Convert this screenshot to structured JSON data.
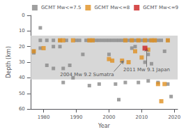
{
  "chart_data": {
    "type": "scatter",
    "xlabel": "Year",
    "ylabel": "Depth (km)",
    "xlim": [
      1976,
      2021
    ],
    "ylim": [
      60,
      0
    ],
    "xticks": [
      1980,
      1990,
      2000,
      2010,
      2020
    ],
    "yticks": [
      0,
      10,
      20,
      30,
      40,
      50,
      60
    ],
    "grid": false,
    "legend": "upper right",
    "marker": "square",
    "shaded_region": {
      "from": 13,
      "to": 41,
      "color": "#d0d0d0"
    },
    "annotations": [
      {
        "text": "2004 Mw 9.2 Sumatra",
        "x": 2004.5,
        "y": 29,
        "text_x": 2001.5,
        "text_y": 36,
        "color": "#555555"
      },
      {
        "text": "2011 Mw 9.1 Japan",
        "x": 2011.5,
        "y": 21,
        "text_x": 2011.5,
        "text_y": 33,
        "color": "#555555"
      }
    ],
    "series": [
      {
        "name": "GCMT Mw<=7.5",
        "color": "#888888",
        "x": [
          1977,
          1977,
          1979,
          1979,
          1979,
          1981,
          1981,
          1983,
          1983,
          1983,
          1985,
          1985,
          1986,
          1986,
          1987,
          1988,
          1989,
          1990,
          1991,
          1992,
          1993,
          1994,
          1994,
          1995,
          1996,
          1997,
          1997,
          1998,
          1999,
          2000,
          2000,
          2001,
          2002,
          2002,
          2003,
          2003,
          2004,
          2005,
          2005,
          2006,
          2007,
          2007,
          2008,
          2008,
          2009,
          2009,
          2010,
          2011,
          2011,
          2012,
          2012,
          2012,
          2013,
          2013,
          2014,
          2015,
          2015,
          2016,
          2017,
          2018,
          2018,
          2019
        ],
        "values": [
          24,
          23,
          8,
          16,
          21,
          32,
          16,
          34,
          20,
          16,
          20,
          16,
          34,
          43,
          16,
          32,
          40,
          16,
          16,
          25,
          16,
          16,
          45,
          16,
          16,
          44,
          16,
          16,
          16,
          16,
          25,
          16,
          16,
          44,
          16,
          54,
          16,
          16,
          43,
          16,
          21,
          16,
          16,
          20,
          16,
          43,
          16,
          16,
          30,
          16,
          25,
          42,
          16,
          31,
          16,
          16,
          43,
          16,
          23,
          16,
          44,
          52
        ]
      },
      {
        "name": "GCMT Mw<=8",
        "color": "#e09020",
        "x": [
          1977,
          1980,
          1985,
          1986,
          1989,
          1994,
          1995,
          2000,
          2001,
          2004,
          2005,
          2006,
          2007,
          2008,
          2009,
          2010,
          2011,
          2012,
          2013,
          2014,
          2015,
          2016,
          2017,
          2018
        ],
        "values": [
          23,
          21,
          16,
          16,
          16,
          16,
          16,
          28,
          29,
          29,
          16,
          30,
          16,
          23,
          16,
          27,
          16,
          22,
          16,
          16,
          44,
          55,
          44,
          16
        ]
      },
      {
        "name": "GCMT Mw<=9",
        "color": "#cc2020",
        "x": [
          2011
        ],
        "values": [
          21
        ]
      }
    ]
  }
}
